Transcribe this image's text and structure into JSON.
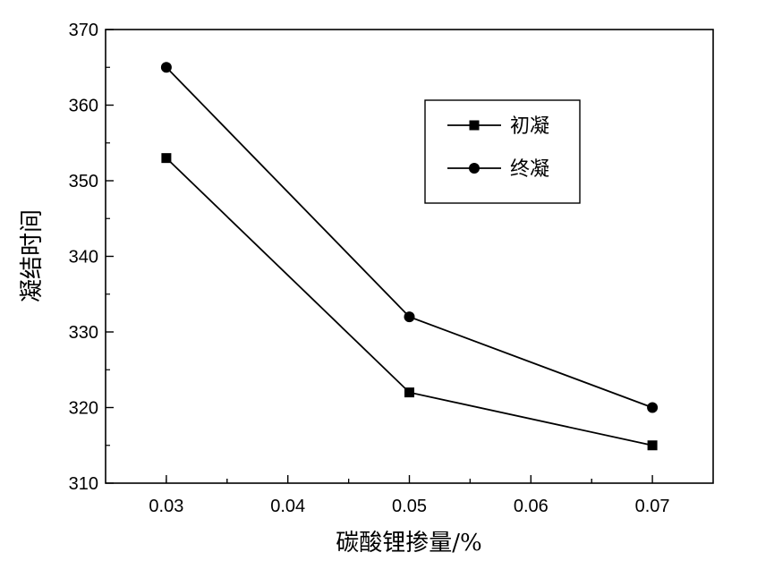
{
  "chart_data": {
    "type": "line",
    "xlabel": "碳酸锂掺量/%",
    "ylabel": "凝结时间",
    "xlim": [
      0.025,
      0.075
    ],
    "ylim": [
      310,
      370
    ],
    "x_ticks": [
      0.03,
      0.04,
      0.05,
      0.06,
      0.07
    ],
    "x_tick_labels": [
      "0.03",
      "0.04",
      "0.05",
      "0.06",
      "0.07"
    ],
    "y_ticks": [
      310,
      320,
      330,
      340,
      350,
      360,
      370
    ],
    "y_tick_labels": [
      "310",
      "320",
      "330",
      "340",
      "350",
      "360",
      "370"
    ],
    "grid": false,
    "legend_position": "top-right",
    "x": [
      0.03,
      0.05,
      0.07
    ],
    "series": [
      {
        "name": "初凝",
        "marker": "square",
        "values": [
          353,
          322,
          315
        ],
        "color": "#000000"
      },
      {
        "name": "终凝",
        "marker": "circle",
        "values": [
          365,
          332,
          320
        ],
        "color": "#000000"
      }
    ]
  }
}
